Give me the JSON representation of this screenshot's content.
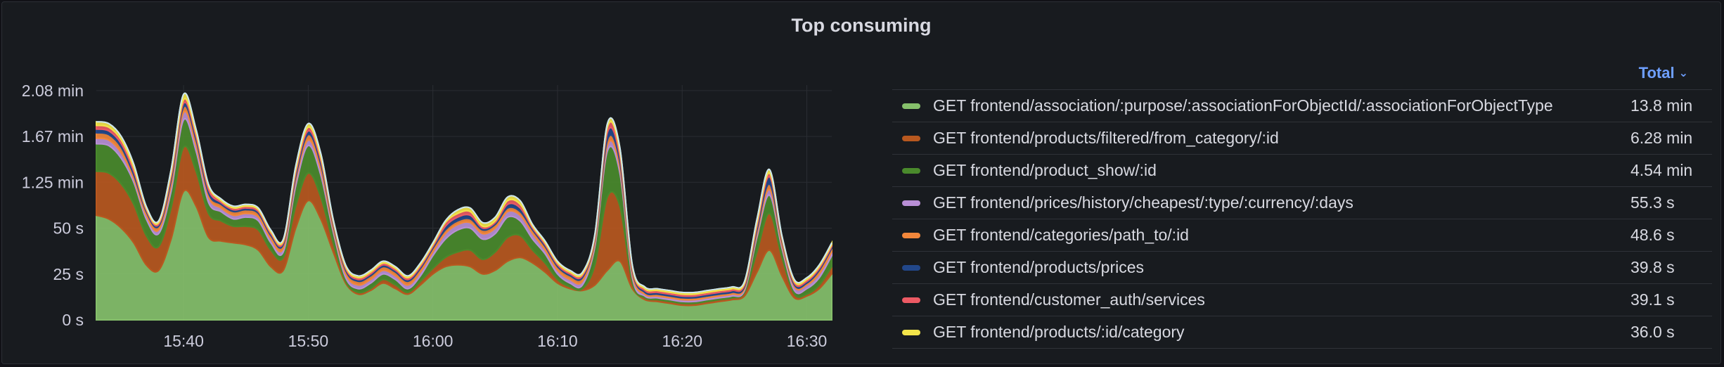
{
  "panel": {
    "title": "Top consuming"
  },
  "legend": {
    "sort_label": "Total",
    "items": [
      {
        "name": "GET frontend/association/:purpose/:associationForObjectId/:associationForObjectType",
        "total": "13.8 min",
        "color": "#86c06b"
      },
      {
        "name": "GET frontend/products/filtered/from_category/:id",
        "total": "6.28 min",
        "color": "#b8581f"
      },
      {
        "name": "GET frontend/product_show/:id",
        "total": "4.54 min",
        "color": "#4a8a2c"
      },
      {
        "name": "GET frontend/prices/history/cheapest/:type/:currency/:days",
        "total": "55.3 s",
        "color": "#b98fd6"
      },
      {
        "name": "GET frontend/categories/path_to/:id",
        "total": "48.6 s",
        "color": "#f2873b"
      },
      {
        "name": "GET frontend/products/prices",
        "total": "39.8 s",
        "color": "#22478a"
      },
      {
        "name": "GET frontend/customer_auth/services",
        "total": "39.1 s",
        "color": "#ec5a64"
      },
      {
        "name": "GET frontend/products/:id/category",
        "total": "36.0 s",
        "color": "#f2e44a"
      }
    ]
  },
  "chart_data": {
    "type": "area",
    "stacked": true,
    "x_unit": "time (HH:MM)",
    "x": [
      "15:33",
      "15:34",
      "15:35",
      "15:36",
      "15:37",
      "15:38",
      "15:39",
      "15:40",
      "15:41",
      "15:42",
      "15:43",
      "15:44",
      "15:45",
      "15:46",
      "15:47",
      "15:48",
      "15:49",
      "15:50",
      "15:51",
      "15:52",
      "15:53",
      "15:54",
      "15:55",
      "15:56",
      "15:57",
      "15:58",
      "15:59",
      "16:00",
      "16:01",
      "16:02",
      "16:03",
      "16:04",
      "16:05",
      "16:06",
      "16:07",
      "16:08",
      "16:09",
      "16:10",
      "16:11",
      "16:12",
      "16:13",
      "16:14",
      "16:15",
      "16:16",
      "16:17",
      "16:18",
      "16:19",
      "16:20",
      "16:21",
      "16:22",
      "16:23",
      "16:24",
      "16:25",
      "16:26",
      "16:27",
      "16:28",
      "16:29",
      "16:30",
      "16:31",
      "16:32"
    ],
    "y_unit": "seconds",
    "yticks": [
      0,
      25,
      50,
      75,
      100,
      125
    ],
    "ytick_labels": [
      "0 s",
      "25 s",
      "50 s",
      "1.25 min",
      "1.67 min",
      "2.08 min"
    ],
    "xticks": [
      "15:40",
      "15:50",
      "16:00",
      "16:10",
      "16:20",
      "16:30"
    ],
    "ylim": [
      0,
      128
    ],
    "grid": true,
    "legend_position": "right",
    "series": [
      {
        "name": "GET frontend/association/:purpose/:associationForObjectId/:associationForObjectType",
        "values": [
          57,
          55,
          50,
          42,
          30,
          27,
          44,
          70,
          62,
          45,
          43,
          42,
          41,
          38,
          29,
          27,
          50,
          65,
          55,
          37,
          20,
          14,
          16,
          20,
          17,
          14,
          19,
          25,
          29,
          30,
          29,
          25,
          27,
          32,
          34,
          31,
          26,
          20,
          17,
          16,
          19,
          27,
          32,
          17,
          11,
          10,
          9,
          8,
          8,
          9,
          10,
          11,
          13,
          26,
          38,
          24,
          12,
          13,
          17,
          25
        ]
      },
      {
        "name": "GET frontend/products/filtered/from_category/:id",
        "values": [
          24,
          25,
          24,
          21,
          16,
          13,
          17,
          24,
          19,
          13,
          11,
          9,
          10,
          11,
          9,
          7,
          12,
          15,
          12,
          5,
          1,
          1,
          1,
          2,
          2,
          1,
          2,
          3,
          5,
          7,
          9,
          8,
          10,
          13,
          12,
          7,
          5,
          2,
          1,
          1,
          11,
          40,
          30,
          3,
          1,
          1,
          1,
          1,
          1,
          1,
          1,
          1,
          2,
          11,
          20,
          10,
          2,
          1,
          2,
          4
        ]
      },
      {
        "name": "GET frontend/product_show/:id",
        "values": [
          15,
          15,
          14,
          12,
          9,
          7,
          9,
          15,
          11,
          6,
          5,
          4,
          5,
          5,
          4,
          3,
          11,
          15,
          12,
          6,
          2,
          2,
          3,
          3,
          3,
          2,
          3,
          7,
          10,
          12,
          12,
          11,
          10,
          11,
          8,
          6,
          5,
          3,
          2,
          2,
          10,
          25,
          18,
          3,
          1,
          1,
          1,
          1,
          1,
          1,
          1,
          1,
          1,
          8,
          10,
          5,
          2,
          3,
          4,
          6
        ]
      },
      {
        "name": "GET frontend/prices/history/cheapest/:type/:currency/:days",
        "values": [
          3,
          3,
          3,
          2,
          2,
          2,
          3,
          4,
          3,
          3,
          2,
          2,
          2,
          2,
          2,
          2,
          3,
          3,
          3,
          2,
          2,
          2,
          2,
          2,
          2,
          2,
          2,
          2,
          3,
          3,
          3,
          3,
          3,
          3,
          3,
          3,
          2,
          2,
          2,
          2,
          2,
          3,
          3,
          2,
          1,
          1,
          1,
          1,
          1,
          1,
          1,
          1,
          1,
          2,
          3,
          2,
          2,
          2,
          2,
          2
        ]
      },
      {
        "name": "GET frontend/categories/path_to/:id",
        "values": [
          3,
          3,
          3,
          2,
          2,
          2,
          3,
          3,
          3,
          2,
          2,
          2,
          2,
          2,
          2,
          2,
          2,
          3,
          3,
          2,
          2,
          2,
          2,
          2,
          2,
          2,
          2,
          2,
          2,
          2,
          2,
          2,
          2,
          2,
          2,
          2,
          2,
          2,
          2,
          2,
          2,
          3,
          3,
          2,
          1,
          1,
          1,
          1,
          1,
          1,
          1,
          1,
          1,
          2,
          3,
          2,
          1,
          1,
          2,
          2
        ]
      },
      {
        "name": "GET frontend/products/prices",
        "values": [
          2,
          2,
          2,
          2,
          1,
          1,
          2,
          2,
          2,
          2,
          1,
          1,
          1,
          1,
          1,
          1,
          2,
          2,
          2,
          1,
          1,
          1,
          1,
          1,
          1,
          1,
          1,
          1,
          2,
          2,
          2,
          1,
          1,
          2,
          2,
          1,
          1,
          1,
          1,
          1,
          1,
          4,
          3,
          1,
          1,
          1,
          1,
          1,
          1,
          1,
          1,
          1,
          1,
          2,
          4,
          1,
          1,
          1,
          1,
          1
        ]
      },
      {
        "name": "GET frontend/customer_auth/services",
        "values": [
          2,
          2,
          2,
          2,
          1,
          1,
          2,
          2,
          2,
          2,
          1,
          1,
          1,
          1,
          1,
          1,
          2,
          2,
          2,
          1,
          1,
          1,
          1,
          1,
          1,
          1,
          1,
          1,
          2,
          2,
          2,
          1,
          1,
          2,
          2,
          1,
          1,
          1,
          1,
          1,
          1,
          3,
          3,
          1,
          1,
          1,
          1,
          1,
          1,
          1,
          1,
          1,
          1,
          2,
          2,
          1,
          1,
          1,
          1,
          1
        ]
      },
      {
        "name": "GET frontend/products/:id/category",
        "values": [
          2,
          2,
          2,
          2,
          1,
          1,
          2,
          3,
          2,
          1,
          1,
          1,
          1,
          1,
          1,
          1,
          2,
          2,
          2,
          1,
          1,
          1,
          1,
          1,
          1,
          1,
          1,
          1,
          1,
          2,
          2,
          2,
          2,
          2,
          2,
          1,
          1,
          1,
          1,
          1,
          1,
          2,
          2,
          1,
          1,
          1,
          1,
          1,
          1,
          1,
          1,
          1,
          1,
          2,
          2,
          1,
          1,
          1,
          1,
          1
        ]
      }
    ]
  }
}
